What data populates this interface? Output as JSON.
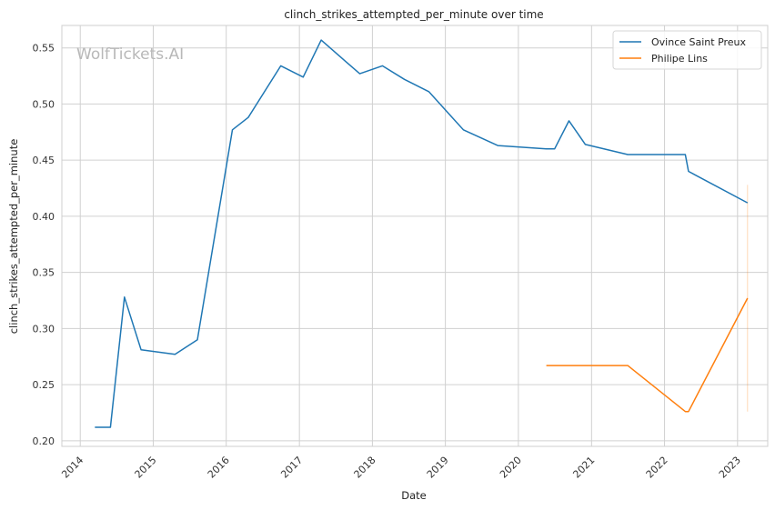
{
  "chart_data": {
    "type": "line",
    "title": "clinch_strikes_attempted_per_minute over time",
    "xlabel": "Date",
    "ylabel": "clinch_strikes_attempted_per_minute",
    "watermark": "WolfTickets.AI",
    "x_ticks": [
      "2014",
      "2015",
      "2016",
      "2017",
      "2018",
      "2019",
      "2020",
      "2021",
      "2022",
      "2023"
    ],
    "y_ticks": [
      "0.20",
      "0.25",
      "0.30",
      "0.35",
      "0.40",
      "0.45",
      "0.50",
      "0.55"
    ],
    "xlim": [
      "2013-10-01",
      "2023-06-01"
    ],
    "ylim": [
      0.195,
      0.57
    ],
    "grid": true,
    "legend_position": "top-right",
    "series": [
      {
        "name": "Ovince Saint Preux",
        "color": "#1f77b4",
        "points": [
          {
            "x": "2014-03-15",
            "y": 0.212
          },
          {
            "x": "2014-06-01",
            "y": 0.212
          },
          {
            "x": "2014-08-10",
            "y": 0.328
          },
          {
            "x": "2014-11-01",
            "y": 0.281
          },
          {
            "x": "2015-04-20",
            "y": 0.277
          },
          {
            "x": "2015-08-10",
            "y": 0.29
          },
          {
            "x": "2016-02-01",
            "y": 0.477
          },
          {
            "x": "2016-04-20",
            "y": 0.488
          },
          {
            "x": "2016-09-30",
            "y": 0.534
          },
          {
            "x": "2017-01-20",
            "y": 0.524
          },
          {
            "x": "2017-04-20",
            "y": 0.557
          },
          {
            "x": "2017-10-30",
            "y": 0.527
          },
          {
            "x": "2018-02-20",
            "y": 0.534
          },
          {
            "x": "2018-06-10",
            "y": 0.522
          },
          {
            "x": "2018-10-10",
            "y": 0.511
          },
          {
            "x": "2019-04-01",
            "y": 0.477
          },
          {
            "x": "2019-09-20",
            "y": 0.463
          },
          {
            "x": "2020-05-20",
            "y": 0.46
          },
          {
            "x": "2020-06-30",
            "y": 0.46
          },
          {
            "x": "2020-09-10",
            "y": 0.485
          },
          {
            "x": "2020-12-01",
            "y": 0.464
          },
          {
            "x": "2021-07-01",
            "y": 0.455
          },
          {
            "x": "2022-04-15",
            "y": 0.455
          },
          {
            "x": "2022-05-01",
            "y": 0.44
          },
          {
            "x": "2023-02-20",
            "y": 0.412
          }
        ]
      },
      {
        "name": "Philipe Lins",
        "color": "#ff7f0e",
        "points": [
          {
            "x": "2020-05-20",
            "y": 0.267
          },
          {
            "x": "2021-07-01",
            "y": 0.267
          },
          {
            "x": "2022-04-15",
            "y": 0.226
          },
          {
            "x": "2022-05-01",
            "y": 0.226
          },
          {
            "x": "2023-02-20",
            "y": 0.327
          }
        ],
        "error_band": {
          "x": "2023-02-20",
          "low": 0.226,
          "high": 0.428
        }
      }
    ]
  }
}
